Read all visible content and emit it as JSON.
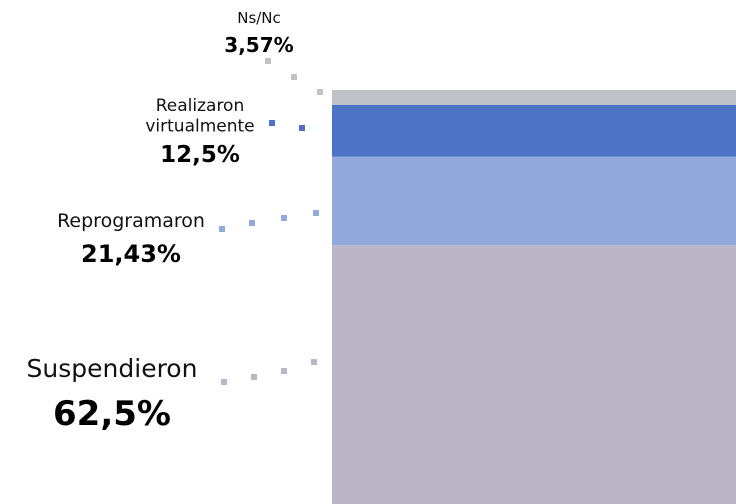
{
  "chart_data": {
    "type": "bar",
    "stacked": true,
    "orientation": "vertical",
    "unit": "%",
    "segments": [
      {
        "label": "Suspendieron",
        "value": 62.5,
        "value_label": "62,5%",
        "color": "#bbb6c6"
      },
      {
        "label": "Reprogramaron",
        "value": 21.43,
        "value_label": "21,43%",
        "color": "#91a9dc"
      },
      {
        "label": "Realizaron virtualmente",
        "value": 12.5,
        "value_label": "12,5%",
        "color": "#4d73c7"
      },
      {
        "label": "Ns/Nc",
        "value": 3.57,
        "value_label": "3,57%",
        "color": "#bfc1c7"
      }
    ],
    "total": 100
  }
}
